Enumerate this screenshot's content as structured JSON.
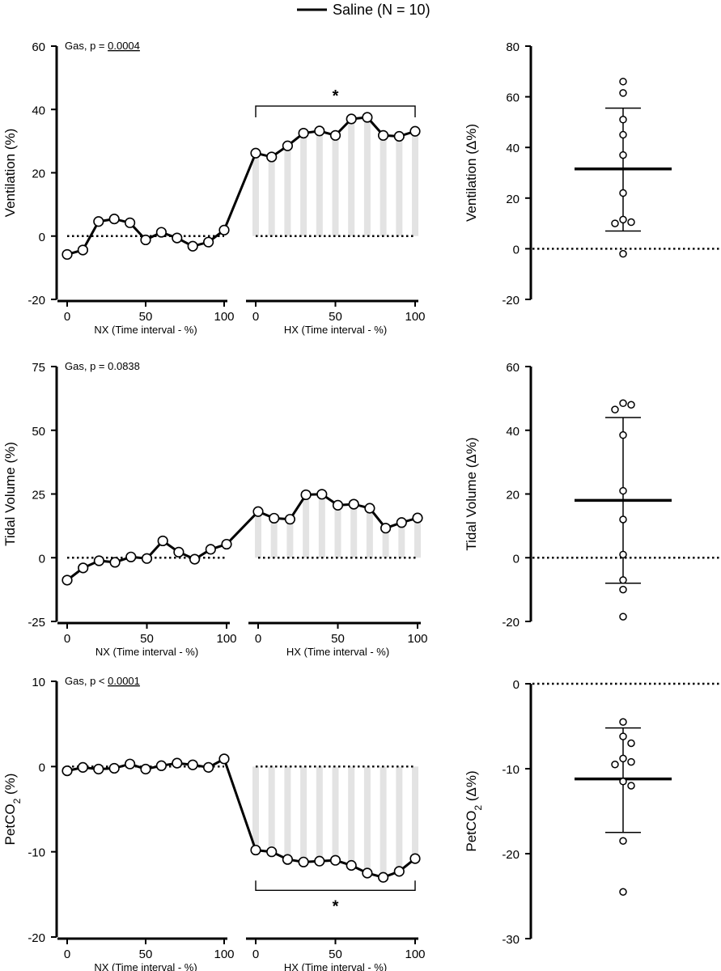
{
  "legend": {
    "label": "Saline (N = 10)"
  },
  "chart_data": [
    {
      "type": "line",
      "panel": "ventilation-time",
      "ylabel": "Ventilation (%)",
      "ylim": [
        -20,
        60
      ],
      "yticks": [
        -20,
        0,
        20,
        40,
        60
      ],
      "stat_prefix": "Gas, p = ",
      "stat_value": "0.0004",
      "stat_underlined": true,
      "nx": {
        "xlabel": "NX (Time interval - %)",
        "xticks": [
          0,
          50,
          100
        ],
        "x": [
          0,
          10,
          20,
          30,
          40,
          50,
          60,
          70,
          80,
          90,
          100
        ],
        "y": [
          -5.8,
          -4.4,
          4.6,
          5.4,
          4.2,
          -1.2,
          1.2,
          -0.6,
          -3.2,
          -1.9,
          1.9
        ]
      },
      "hx": {
        "xlabel": "HX (Time interval - %)",
        "xticks": [
          0,
          50,
          100
        ],
        "x": [
          0,
          10,
          20,
          30,
          40,
          50,
          60,
          70,
          80,
          90,
          100
        ],
        "y": [
          26.2,
          25.0,
          28.5,
          32.5,
          33.2,
          31.8,
          37.0,
          37.5,
          31.8,
          31.5,
          33.1
        ]
      },
      "shaded": true,
      "significance": {
        "label": "*",
        "span": [
          0,
          100
        ],
        "position": "above"
      }
    },
    {
      "type": "scatter",
      "panel": "ventilation-delta",
      "ylabel": "Ventilation (Δ%)",
      "ylim": [
        -20,
        80
      ],
      "yticks": [
        -20,
        0,
        20,
        40,
        60,
        80
      ],
      "points": [
        66,
        61.5,
        51,
        45,
        37,
        22,
        11.5,
        10,
        10.5,
        -2
      ],
      "mean": 31.5,
      "sd_upper": 55.5,
      "sd_lower": 7
    },
    {
      "type": "line",
      "panel": "tidal-volume-time",
      "ylabel": "Tidal Volume (%)",
      "ylim": [
        -25,
        75
      ],
      "yticks": [
        -25,
        0,
        25,
        50,
        75
      ],
      "stat_prefix": "Gas, p = ",
      "stat_value": "0.0838",
      "stat_underlined": false,
      "nx": {
        "xlabel": "NX (Time interval - %)",
        "xticks": [
          0,
          50,
          100
        ],
        "x": [
          0,
          10,
          20,
          30,
          40,
          50,
          60,
          70,
          80,
          90,
          100
        ],
        "y": [
          -8.8,
          -4.0,
          -1.2,
          -1.8,
          0.3,
          -0.3,
          6.6,
          2.2,
          -0.6,
          3.3,
          5.3
        ]
      },
      "hx": {
        "xlabel": "HX (Time interval - %)",
        "xticks": [
          0,
          50,
          100
        ],
        "x": [
          0,
          10,
          20,
          30,
          40,
          50,
          60,
          70,
          80,
          90,
          100
        ],
        "y": [
          18.1,
          15.5,
          15.1,
          24.7,
          24.9,
          20.6,
          21.0,
          19.4,
          11.6,
          13.8,
          15.6
        ]
      },
      "shaded": true
    },
    {
      "type": "scatter",
      "panel": "tidal-volume-delta",
      "ylabel": "Tidal Volume (Δ%)",
      "ylim": [
        -20,
        60
      ],
      "yticks": [
        -20,
        0,
        20,
        40,
        60
      ],
      "points": [
        48,
        48.5,
        46.5,
        38.5,
        21,
        12,
        1,
        -7,
        -10,
        -18.5
      ],
      "mean": 18,
      "sd_upper": 44,
      "sd_lower": -8
    },
    {
      "type": "line",
      "panel": "petco2-time",
      "ylabel": "PetCO",
      "ylabel_sub": "2",
      "ylabel_unit": " (%)",
      "ylim": [
        -20,
        10
      ],
      "yticks": [
        -20,
        -10,
        0,
        10
      ],
      "stat_prefix": "Gas, p < ",
      "stat_value": "0.0001",
      "stat_underlined": true,
      "nx": {
        "xlabel": "NX (Time interval - %)",
        "xticks": [
          0,
          50,
          100
        ],
        "x": [
          0,
          10,
          20,
          30,
          40,
          50,
          60,
          70,
          80,
          90,
          100
        ],
        "y": [
          -0.5,
          -0.1,
          -0.3,
          -0.2,
          0.3,
          -0.3,
          0.1,
          0.4,
          0.2,
          -0.1,
          0.9
        ]
      },
      "hx": {
        "xlabel": "HX (Time interval - %)",
        "xticks": [
          0,
          50,
          100
        ],
        "x": [
          0,
          10,
          20,
          30,
          40,
          50,
          60,
          70,
          80,
          90,
          100
        ],
        "y": [
          -9.8,
          -10.0,
          -10.9,
          -11.2,
          -11.1,
          -11.0,
          -11.6,
          -12.5,
          -13.0,
          -12.3,
          -10.8
        ]
      },
      "shaded": true,
      "significance": {
        "label": "*",
        "span": [
          0,
          100
        ],
        "position": "below"
      }
    },
    {
      "type": "scatter",
      "panel": "petco2-delta",
      "ylabel": "PetCO",
      "ylabel_sub": "2",
      "ylabel_unit": " (Δ%)",
      "ylim": [
        -30,
        0
      ],
      "yticks": [
        -30,
        -20,
        -10,
        0
      ],
      "points": [
        -4.5,
        -6.2,
        -7,
        -8.8,
        -9.2,
        -9.5,
        -11.5,
        -12,
        -18.5,
        -24.5
      ],
      "mean": -11.2,
      "sd_upper": -5.2,
      "sd_lower": -17.5
    }
  ]
}
